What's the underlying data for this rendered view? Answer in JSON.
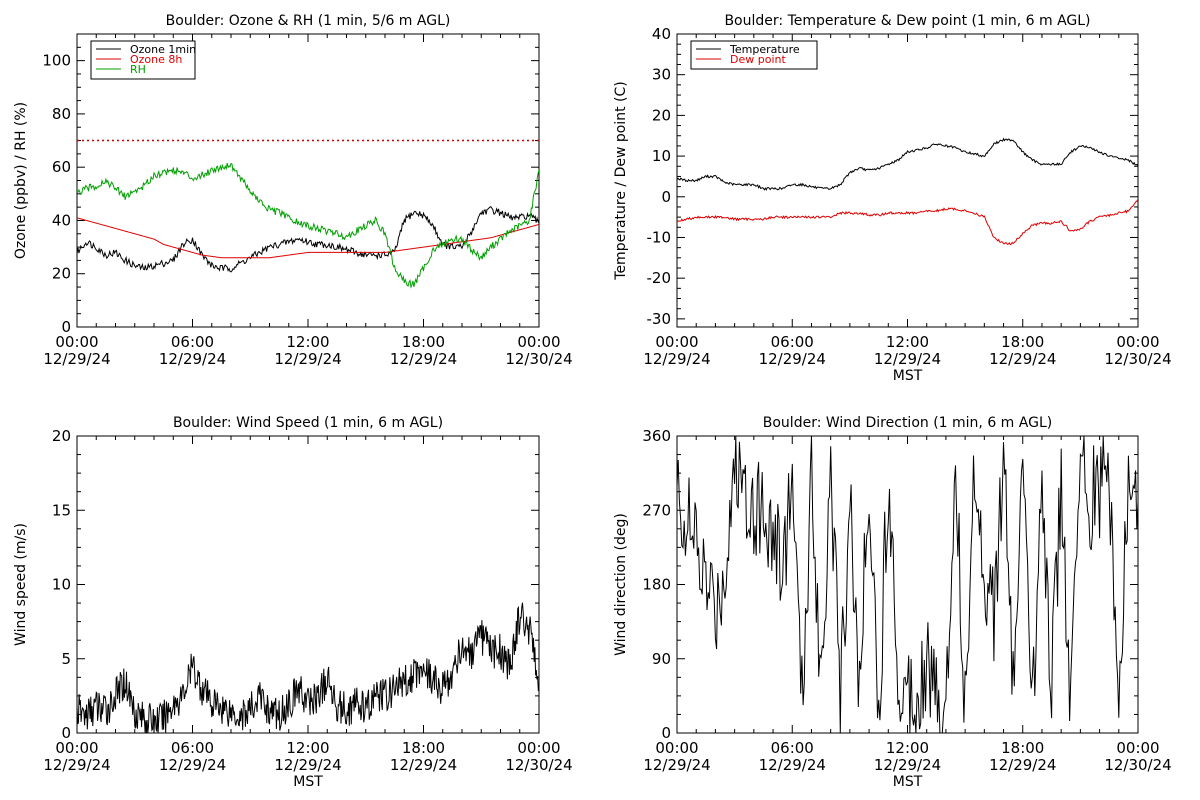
{
  "chart_data": [
    {
      "type": "line",
      "title": "Boulder: Ozone & RH (1 min, 5/6 m AGL)",
      "xlabel": "",
      "ylabel": "Ozone (ppbv) / RH (%)",
      "xlim": [
        "2024-12-29 00:00",
        "2024-12-30 00:00"
      ],
      "ylim": [
        0,
        110
      ],
      "xtick_times": [
        "00:00",
        "06:00",
        "12:00",
        "18:00",
        "00:00"
      ],
      "xtick_dates": [
        "12/29/24",
        "12/29/24",
        "12/29/24",
        "12/29/24",
        "12/30/24"
      ],
      "yticks": [
        0,
        20,
        40,
        60,
        80,
        100
      ],
      "legend": "top-left",
      "reference_line": {
        "y": 70,
        "color": "#cc0000",
        "style": "dotted"
      },
      "x_hours": [
        0,
        0.5,
        1,
        1.5,
        2,
        2.5,
        3,
        3.5,
        4,
        4.5,
        5,
        5.5,
        6,
        6.5,
        7,
        7.5,
        8,
        8.5,
        9,
        9.5,
        10,
        10.5,
        11,
        11.5,
        12,
        12.5,
        13,
        13.5,
        14,
        14.5,
        15,
        15.5,
        16,
        16.5,
        17,
        17.5,
        18,
        18.5,
        19,
        19.5,
        20,
        20.5,
        21,
        21.5,
        22,
        22.5,
        23,
        23.5,
        24
      ],
      "series": [
        {
          "name": "Ozone 1min",
          "color": "#000000",
          "values": [
            28,
            32,
            30,
            27,
            28,
            25,
            23,
            22,
            23,
            24,
            25,
            31,
            33,
            27,
            23,
            22,
            22,
            24,
            26,
            28,
            30,
            31,
            32,
            33,
            32,
            31,
            31,
            30,
            29,
            28,
            27,
            27,
            27,
            28,
            40,
            43,
            42,
            38,
            31,
            30,
            30,
            36,
            43,
            44,
            43,
            41,
            41,
            42,
            39
          ]
        },
        {
          "name": "Ozone 8h",
          "color": "#dd0000",
          "values": [
            41,
            40,
            39,
            38,
            37,
            36,
            35,
            34,
            33,
            31,
            30,
            29,
            28,
            27,
            26.5,
            26,
            26,
            26,
            26,
            26,
            26,
            26.5,
            27,
            27.5,
            28,
            28,
            28,
            28,
            28,
            28,
            28,
            28,
            28,
            28.5,
            29,
            29.5,
            30,
            30.5,
            31,
            31.5,
            32,
            32.5,
            33,
            33.5,
            34.5,
            35.5,
            36.5,
            37.5,
            38.5
          ]
        },
        {
          "name": "RH",
          "color": "#00a000",
          "values": [
            50,
            52,
            53,
            55,
            52,
            49,
            51,
            53,
            57,
            58,
            59,
            58,
            56,
            57,
            59,
            60,
            61,
            56,
            51,
            47,
            44,
            43,
            41,
            39,
            38,
            37,
            36,
            35,
            34,
            36,
            38,
            40,
            35,
            22,
            17,
            16,
            22,
            29,
            31,
            33,
            33,
            29,
            26,
            30,
            33,
            36,
            38,
            40,
            59
          ]
        }
      ]
    },
    {
      "type": "line",
      "title": "Boulder: Temperature & Dew point (1 min, 6 m AGL)",
      "xlabel": "MST",
      "ylabel": "Temperature / Dew point (C)",
      "xlim": [
        "2024-12-29 00:00",
        "2024-12-30 00:00"
      ],
      "ylim": [
        -32,
        40
      ],
      "xtick_times": [
        "00:00",
        "06:00",
        "12:00",
        "18:00",
        "00:00"
      ],
      "xtick_dates": [
        "12/29/24",
        "12/29/24",
        "12/29/24",
        "12/29/24",
        "12/30/24"
      ],
      "yticks": [
        -30,
        -20,
        -10,
        0,
        10,
        20,
        30,
        40
      ],
      "legend": "top-left",
      "x_hours": [
        0,
        0.5,
        1,
        1.5,
        2,
        2.5,
        3,
        3.5,
        4,
        4.5,
        5,
        5.5,
        6,
        6.5,
        7,
        7.5,
        8,
        8.5,
        9,
        9.5,
        10,
        10.5,
        11,
        11.5,
        12,
        12.5,
        13,
        13.5,
        14,
        14.5,
        15,
        15.5,
        16,
        16.5,
        17,
        17.5,
        18,
        18.5,
        19,
        19.5,
        20,
        20.5,
        21,
        21.5,
        22,
        22.5,
        23,
        23.5,
        24
      ],
      "series": [
        {
          "name": "Temperature",
          "color": "#000000",
          "values": [
            4.5,
            4,
            4,
            5,
            5,
            3.5,
            3,
            3,
            3,
            2,
            2,
            2,
            3,
            3,
            2.5,
            2,
            2,
            3,
            6,
            7,
            6.5,
            7,
            8,
            9,
            11,
            11.5,
            12,
            13,
            12.5,
            12,
            11,
            10.5,
            10,
            13,
            14,
            14,
            11,
            9,
            8,
            8,
            8,
            11,
            12.5,
            12,
            11,
            10,
            9.5,
            9,
            7.5
          ]
        },
        {
          "name": "Dew point",
          "color": "#dd0000",
          "values": [
            -6,
            -5.5,
            -5,
            -5,
            -5,
            -5,
            -5.5,
            -5.5,
            -5.5,
            -5.5,
            -5,
            -5,
            -5,
            -5,
            -5,
            -5,
            -5,
            -4,
            -4,
            -4,
            -4.5,
            -4.5,
            -4,
            -4,
            -4,
            -4,
            -3.5,
            -3.5,
            -3,
            -3,
            -3.5,
            -4,
            -5,
            -10,
            -11.5,
            -11.5,
            -9,
            -7,
            -6.5,
            -6.5,
            -6,
            -8.5,
            -8,
            -6,
            -5,
            -4.5,
            -4,
            -3.5,
            -0.5
          ]
        }
      ]
    },
    {
      "type": "line",
      "title": "Boulder: Wind Speed (1 min, 6 m AGL)",
      "xlabel": "MST",
      "ylabel": "Wind speed (m/s)",
      "xlim": [
        "2024-12-29 00:00",
        "2024-12-30 00:00"
      ],
      "ylim": [
        0,
        20
      ],
      "xtick_times": [
        "00:00",
        "06:00",
        "12:00",
        "18:00",
        "00:00"
      ],
      "xtick_dates": [
        "12/29/24",
        "12/29/24",
        "12/29/24",
        "12/29/24",
        "12/30/24"
      ],
      "yticks": [
        0,
        5,
        10,
        15,
        20
      ],
      "legend": "none",
      "x_hours": [
        0,
        0.5,
        1,
        1.5,
        2,
        2.5,
        3,
        3.5,
        4,
        4.5,
        5,
        5.5,
        6,
        6.5,
        7,
        7.5,
        8,
        8.5,
        9,
        9.5,
        10,
        10.5,
        11,
        11.5,
        12,
        12.5,
        13,
        13.5,
        14,
        14.5,
        15,
        15.5,
        16,
        16.5,
        17,
        17.5,
        18,
        18.5,
        19,
        19.5,
        20,
        20.5,
        21,
        21.5,
        22,
        22.5,
        23,
        23.5,
        24
      ],
      "series": [
        {
          "name": "",
          "color": "#000000",
          "values": [
            1.5,
            1.2,
            1.8,
            1.5,
            2.5,
            3.5,
            1.5,
            1,
            0.8,
            1,
            2,
            2.5,
            4.5,
            3,
            2,
            1.8,
            1.5,
            1.2,
            1.5,
            2.5,
            1.5,
            1.2,
            2,
            3,
            2,
            2.5,
            3.5,
            2,
            1.5,
            2,
            1.5,
            2.5,
            2.5,
            3,
            3.5,
            4,
            4.5,
            3.5,
            3,
            4,
            6,
            5,
            6.5,
            5.5,
            5.5,
            4.5,
            8,
            7,
            3
          ]
        }
      ]
    },
    {
      "type": "line",
      "title": "Boulder: Wind Direction (1 min, 6 m AGL)",
      "xlabel": "MST",
      "ylabel": "Wind direction (deg)",
      "xlim": [
        "2024-12-29 00:00",
        "2024-12-30 00:00"
      ],
      "ylim": [
        0,
        360
      ],
      "xtick_times": [
        "00:00",
        "06:00",
        "12:00",
        "18:00",
        "00:00"
      ],
      "xtick_dates": [
        "12/29/24",
        "12/29/24",
        "12/29/24",
        "12/29/24",
        "12/30/24"
      ],
      "yticks": [
        0,
        90,
        180,
        270,
        360
      ],
      "legend": "none",
      "x_hours": [
        0,
        0.5,
        1,
        1.5,
        2,
        2.5,
        3,
        3.5,
        4,
        4.5,
        5,
        5.5,
        6,
        6.5,
        7,
        7.5,
        8,
        8.5,
        9,
        9.5,
        10,
        10.5,
        11,
        11.5,
        12,
        12.5,
        13,
        13.5,
        14,
        14.5,
        15,
        15.5,
        16,
        16.5,
        17,
        17.5,
        18,
        18.5,
        19,
        19.5,
        20,
        20.5,
        21,
        21.5,
        22,
        22.5,
        23,
        23.5,
        24
      ],
      "series": [
        {
          "name": "",
          "color": "#000000",
          "values": [
            290,
            260,
            220,
            180,
            150,
            200,
            330,
            300,
            280,
            270,
            240,
            200,
            310,
            30,
            320,
            60,
            340,
            20,
            300,
            40,
            330,
            10,
            320,
            70,
            50,
            60,
            90,
            40,
            30,
            340,
            20,
            330,
            200,
            150,
            320,
            60,
            300,
            20,
            330,
            50,
            310,
            20,
            340,
            280,
            300,
            320,
            30,
            290,
            280
          ]
        }
      ]
    }
  ]
}
